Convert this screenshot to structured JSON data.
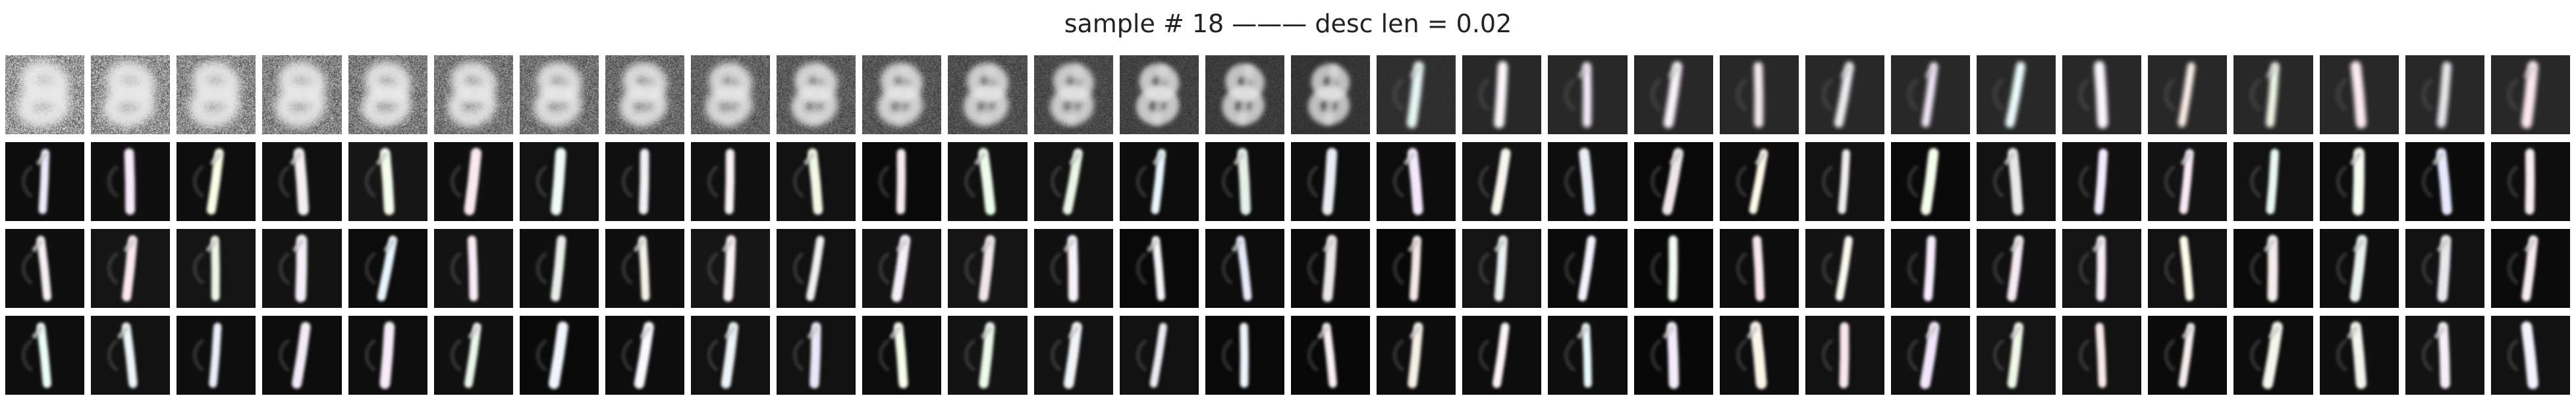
{
  "figure": {
    "title": "sample # 18 ——— desc len = 0.02"
  },
  "grid": {
    "rows": 4,
    "cols": 30,
    "image_content": "grayscale MNIST-style reconstructions; row 1 morphs from noisy blob digits to a '1'; rows 2-4 are all the digit '1'"
  }
}
